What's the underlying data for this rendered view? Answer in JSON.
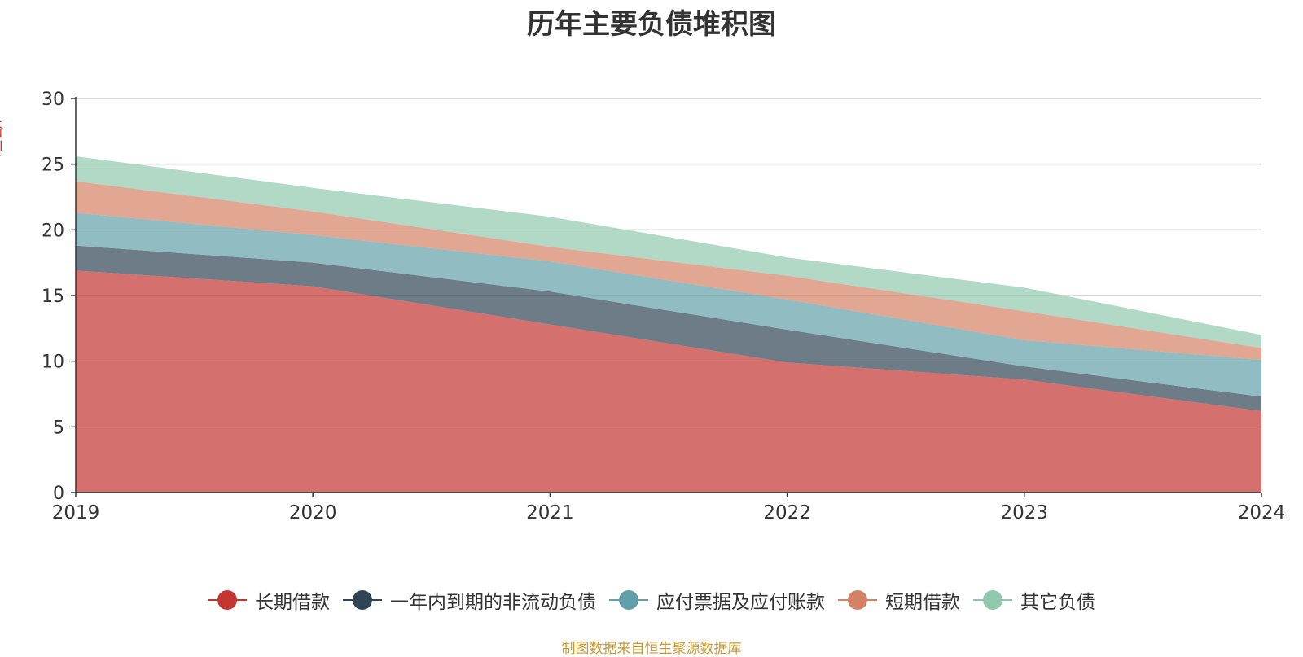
{
  "chart_data": {
    "type": "area",
    "stacked": true,
    "title": "历年主要负债堆积图",
    "unit": "(亿元)",
    "x": [
      "2019",
      "2020",
      "2021",
      "2022",
      "2023",
      "2024"
    ],
    "ylim": [
      0,
      30
    ],
    "yticks": [
      0,
      5,
      10,
      15,
      20,
      25,
      30
    ],
    "grid": true,
    "legend_position": "bottom-center",
    "series": [
      {
        "name": "长期借款",
        "color": "#c23531",
        "values": [
          16.9,
          15.7,
          12.8,
          9.9,
          8.6,
          6.2
        ]
      },
      {
        "name": "一年内到期的非流动负债",
        "color": "#2f4554",
        "values": [
          1.9,
          1.8,
          2.5,
          2.5,
          1.0,
          1.1
        ]
      },
      {
        "name": "应付票据及应付账款",
        "color": "#61a0a8",
        "values": [
          2.5,
          2.1,
          2.3,
          2.3,
          2.0,
          2.8
        ]
      },
      {
        "name": "短期借款",
        "color": "#d48265",
        "values": [
          2.4,
          1.8,
          1.1,
          1.8,
          2.2,
          0.9
        ]
      },
      {
        "name": "其它负债",
        "color": "#91c7ae",
        "values": [
          1.9,
          1.8,
          2.3,
          1.4,
          1.8,
          1.0
        ]
      }
    ],
    "source": "制图数据来自恒生聚源数据库"
  }
}
